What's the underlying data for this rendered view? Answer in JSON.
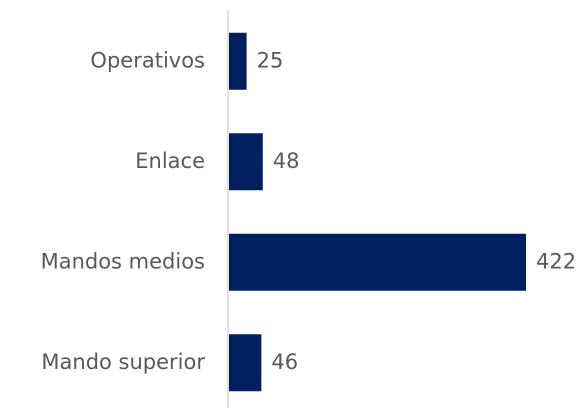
{
  "chart_data": {
    "type": "bar",
    "orientation": "horizontal",
    "categories": [
      "Operativos",
      "Enlace",
      "Mandos medios",
      "Mando superior"
    ],
    "values": [
      25,
      48,
      422,
      46
    ],
    "color": "#002060"
  }
}
